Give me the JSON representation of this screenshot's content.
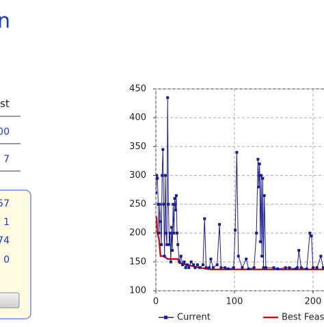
{
  "ui": {
    "title": "n",
    "column_header": "st",
    "rows": [
      "00",
      "7"
    ],
    "panel_values": [
      "57",
      "1",
      "74",
      "0"
    ]
  },
  "chart_data": {
    "type": "line",
    "grid": true,
    "xlim": [
      0,
      214
    ],
    "ylim": [
      100,
      450
    ],
    "xticks": [
      0,
      100,
      200
    ],
    "yticks": [
      100,
      150,
      200,
      250,
      300,
      350,
      400,
      450
    ],
    "series": [
      {
        "name": "Current",
        "color": "#1c1c8c",
        "markers": true,
        "x": [
          0,
          1,
          2,
          3,
          4,
          5,
          6,
          7,
          8,
          9,
          10,
          11,
          12,
          13,
          14,
          15,
          16,
          17,
          18,
          19,
          20,
          21,
          22,
          23,
          24,
          25,
          26,
          27,
          28,
          30,
          32,
          34,
          36,
          38,
          40,
          42,
          45,
          48,
          50,
          53,
          56,
          60,
          62,
          64,
          68,
          70,
          73,
          78,
          81,
          83,
          88,
          92,
          99,
          101,
          103,
          105,
          110,
          115,
          118,
          125,
          128,
          130,
          131,
          132,
          133,
          134,
          135,
          136,
          137,
          138,
          140,
          150,
          155,
          165,
          170,
          178,
          180,
          182,
          185,
          192,
          196,
          198,
          200,
          205,
          210,
          213
        ],
        "values": [
          270,
          300,
          295,
          250,
          200,
          250,
          220,
          180,
          300,
          345,
          250,
          160,
          300,
          200,
          180,
          435,
          250,
          180,
          200,
          150,
          210,
          170,
          250,
          200,
          260,
          240,
          265,
          200,
          180,
          150,
          160,
          145,
          150,
          140,
          145,
          140,
          150,
          145,
          140,
          145,
          140,
          145,
          225,
          140,
          140,
          155,
          140,
          145,
          215,
          140,
          140,
          138,
          140,
          205,
          340,
          160,
          140,
          155,
          138,
          140,
          200,
          328,
          280,
          320,
          185,
          300,
          160,
          295,
          140,
          265,
          140,
          140,
          138,
          140,
          140,
          138,
          140,
          170,
          140,
          138,
          200,
          195,
          140,
          140,
          160,
          140
        ]
      },
      {
        "name": "Best Feas",
        "color": "#c0141c",
        "markers": false,
        "x": [
          0,
          1,
          2,
          4,
          6,
          10,
          15,
          28,
          30,
          40,
          55,
          70,
          214
        ],
        "values": [
          230,
          225,
          200,
          190,
          160,
          160,
          155,
          155,
          148,
          145,
          140,
          137,
          137
        ]
      }
    ]
  }
}
